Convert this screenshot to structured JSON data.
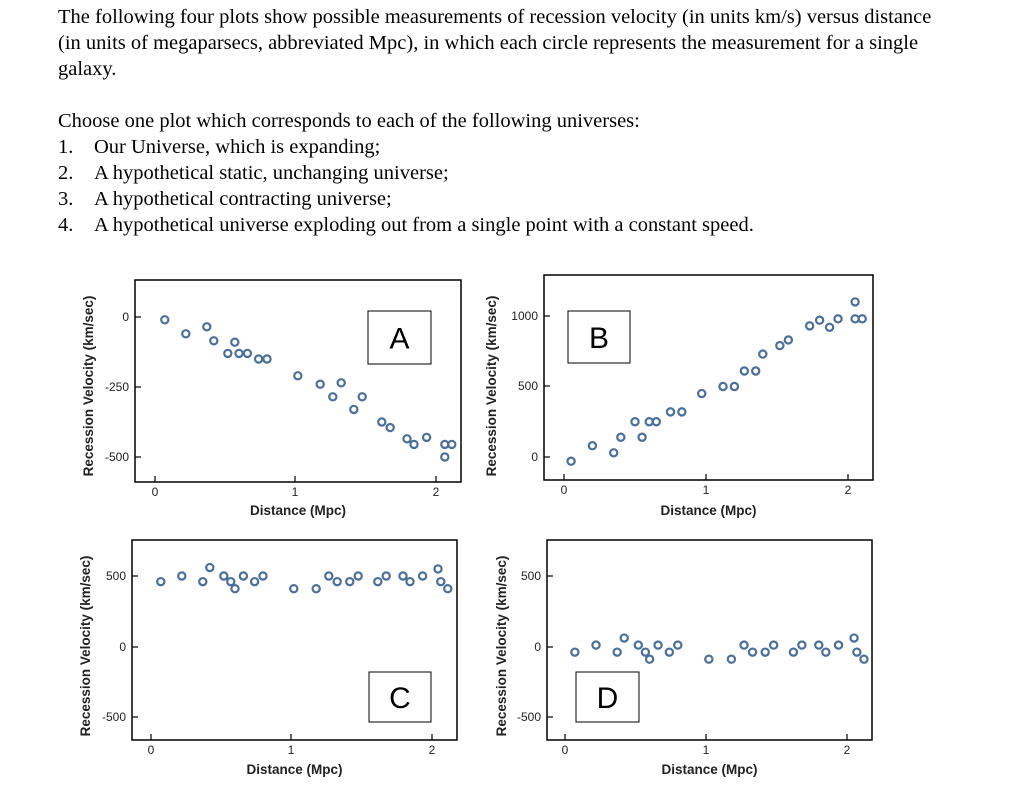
{
  "intro": {
    "paragraph1": "The following four plots show possible measurements of recession velocity (in units km/s) versus distance (in units of megaparsecs, abbreviated Mpc), in which each circle represents the measurement for a single galaxy.",
    "paragraph2": "Choose one plot which corresponds to each of the following universes:",
    "items": [
      {
        "num": "1.",
        "text": "Our Universe, which is expanding;"
      },
      {
        "num": "2.",
        "text": "A hypothetical static, unchanging universe;"
      },
      {
        "num": "3.",
        "text": "A hypothetical contracting universe;"
      },
      {
        "num": "4.",
        "text": "A hypothetical universe exploding out from a single point with a constant speed."
      }
    ]
  },
  "colors": {
    "marker": "#4a6f9a",
    "axis": "#000000"
  },
  "chart_data": [
    {
      "type": "scatter",
      "label": "A",
      "xlabel": "Distance (Mpc)",
      "ylabel": "Recession Velocity (km/sec)",
      "xticks": [
        "0",
        "1",
        "2"
      ],
      "yticks": [
        "0",
        "-250",
        "-500"
      ],
      "xlim": [
        -0.1,
        2.15
      ],
      "ylim": [
        -580,
        80
      ],
      "points": [
        [
          0.07,
          -10
        ],
        [
          0.22,
          -60
        ],
        [
          0.37,
          -35
        ],
        [
          0.42,
          -85
        ],
        [
          0.52,
          -130
        ],
        [
          0.57,
          -90
        ],
        [
          0.6,
          -130
        ],
        [
          0.66,
          -130
        ],
        [
          0.74,
          -150
        ],
        [
          0.8,
          -150
        ],
        [
          1.02,
          -210
        ],
        [
          1.18,
          -240
        ],
        [
          1.27,
          -285
        ],
        [
          1.33,
          -235
        ],
        [
          1.42,
          -330
        ],
        [
          1.48,
          -285
        ],
        [
          1.62,
          -375
        ],
        [
          1.68,
          -395
        ],
        [
          1.8,
          -435
        ],
        [
          1.85,
          -455
        ],
        [
          1.94,
          -430
        ],
        [
          2.07,
          -500
        ],
        [
          2.07,
          -455
        ],
        [
          2.12,
          -455
        ]
      ]
    },
    {
      "type": "scatter",
      "label": "B",
      "xlabel": "Distance (Mpc)",
      "ylabel": "Recession Velocity (km/sec)",
      "xticks": [
        "0",
        "1",
        "2"
      ],
      "yticks": [
        "1000",
        "500",
        "0"
      ],
      "xlim": [
        -0.1,
        2.15
      ],
      "ylim": [
        -80,
        1290
      ],
      "points": [
        [
          0.05,
          -30
        ],
        [
          0.2,
          80
        ],
        [
          0.35,
          30
        ],
        [
          0.4,
          140
        ],
        [
          0.5,
          250
        ],
        [
          0.55,
          140
        ],
        [
          0.6,
          250
        ],
        [
          0.65,
          250
        ],
        [
          0.75,
          320
        ],
        [
          0.83,
          320
        ],
        [
          0.97,
          450
        ],
        [
          1.12,
          500
        ],
        [
          1.2,
          500
        ],
        [
          1.27,
          610
        ],
        [
          1.35,
          610
        ],
        [
          1.4,
          730
        ],
        [
          1.52,
          790
        ],
        [
          1.58,
          830
        ],
        [
          1.73,
          930
        ],
        [
          1.8,
          970
        ],
        [
          1.87,
          920
        ],
        [
          1.93,
          980
        ],
        [
          2.05,
          980
        ],
        [
          2.05,
          1100
        ],
        [
          2.1,
          980
        ]
      ]
    },
    {
      "type": "scatter",
      "label": "C",
      "xlabel": "Distance (Mpc)",
      "ylabel": "Recession Velocity (km/sec)",
      "xticks": [
        "0",
        "1",
        "2"
      ],
      "yticks": [
        "500",
        "0",
        "-500"
      ],
      "xlim": [
        -0.1,
        2.15
      ],
      "ylim": [
        -640,
        560
      ],
      "points": [
        [
          0.07,
          460
        ],
        [
          0.22,
          500
        ],
        [
          0.37,
          460
        ],
        [
          0.42,
          560
        ],
        [
          0.52,
          500
        ],
        [
          0.57,
          460
        ],
        [
          0.6,
          410
        ],
        [
          0.66,
          500
        ],
        [
          0.74,
          460
        ],
        [
          0.8,
          500
        ],
        [
          1.02,
          410
        ],
        [
          1.18,
          410
        ],
        [
          1.27,
          500
        ],
        [
          1.33,
          460
        ],
        [
          1.42,
          460
        ],
        [
          1.48,
          500
        ],
        [
          1.62,
          460
        ],
        [
          1.68,
          500
        ],
        [
          1.8,
          500
        ],
        [
          1.85,
          460
        ],
        [
          1.94,
          500
        ],
        [
          2.05,
          550
        ],
        [
          2.07,
          460
        ],
        [
          2.12,
          410
        ]
      ]
    },
    {
      "type": "scatter",
      "label": "D",
      "xlabel": "Distance (Mpc)",
      "ylabel": "Recession Velocity (km/sec)",
      "xticks": [
        "0",
        "1",
        "2"
      ],
      "yticks": [
        "500",
        "0",
        "-500"
      ],
      "xlim": [
        -0.1,
        2.15
      ],
      "ylim": [
        -640,
        560
      ],
      "points": [
        [
          0.07,
          -40
        ],
        [
          0.22,
          10
        ],
        [
          0.37,
          -40
        ],
        [
          0.42,
          60
        ],
        [
          0.52,
          10
        ],
        [
          0.57,
          -40
        ],
        [
          0.6,
          -90
        ],
        [
          0.66,
          10
        ],
        [
          0.74,
          -40
        ],
        [
          0.8,
          10
        ],
        [
          1.02,
          -90
        ],
        [
          1.18,
          -90
        ],
        [
          1.27,
          10
        ],
        [
          1.33,
          -40
        ],
        [
          1.42,
          -40
        ],
        [
          1.48,
          10
        ],
        [
          1.62,
          -40
        ],
        [
          1.68,
          10
        ],
        [
          1.8,
          10
        ],
        [
          1.85,
          -40
        ],
        [
          1.94,
          10
        ],
        [
          2.05,
          60
        ],
        [
          2.07,
          -40
        ],
        [
          2.12,
          -90
        ]
      ]
    }
  ]
}
